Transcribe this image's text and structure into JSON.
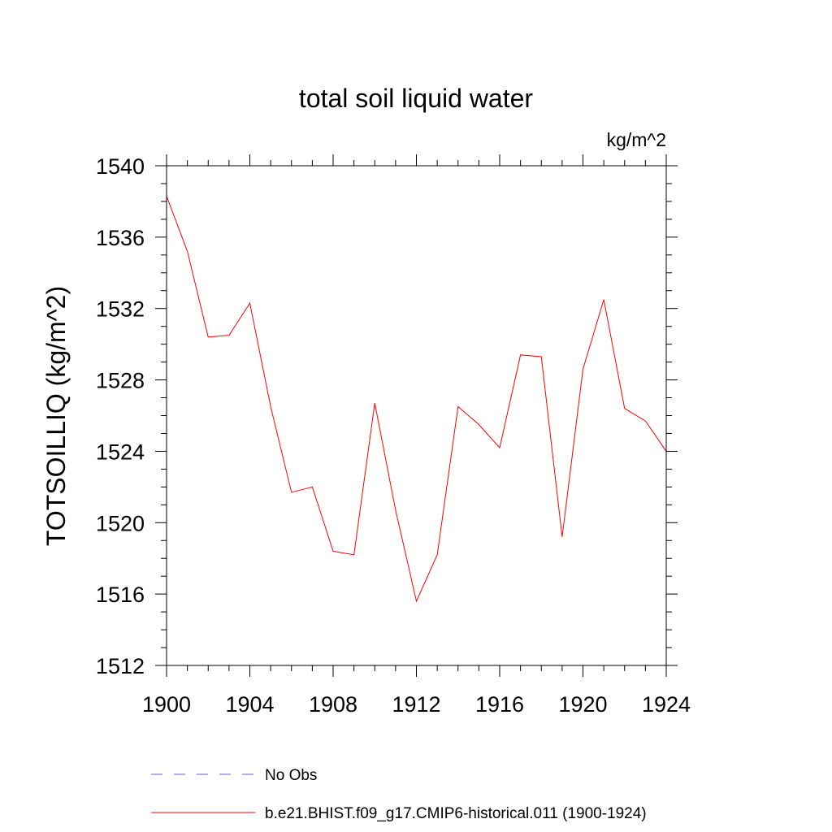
{
  "chart_data": {
    "type": "line",
    "title": "total soil liquid water",
    "units": "kg/m^2",
    "ylabel": "TOTSOILLIQ  (kg/m^2)",
    "xlabel": "",
    "xlim": [
      1900,
      1924
    ],
    "ylim": [
      1512,
      1540
    ],
    "x_ticks": [
      1900,
      1904,
      1908,
      1912,
      1916,
      1920,
      1924
    ],
    "y_ticks": [
      1512,
      1516,
      1520,
      1524,
      1528,
      1532,
      1536,
      1540
    ],
    "x_minor_step": 1,
    "y_minor_step": 1,
    "grid": false,
    "legend_position": "bottom",
    "colors": {
      "model": "#ff0000",
      "obs": "#6a5acd"
    },
    "series": [
      {
        "name": "b.e21.BHIST.f09_g17.CMIP6-historical.011 (1900-1924)",
        "style": "solid",
        "x": [
          1900,
          1901,
          1902,
          1903,
          1904,
          1905,
          1906,
          1907,
          1908,
          1909,
          1910,
          1911,
          1912,
          1913,
          1914,
          1915,
          1916,
          1917,
          1918,
          1919,
          1920,
          1921,
          1922,
          1923,
          1924
        ],
        "values": [
          1538.3,
          1535.2,
          1530.4,
          1530.5,
          1532.3,
          1526.5,
          1521.7,
          1522.0,
          1518.4,
          1518.2,
          1526.7,
          1520.7,
          1515.6,
          1518.2,
          1526.5,
          1525.5,
          1524.2,
          1529.4,
          1529.3,
          1519.2,
          1528.6,
          1532.5,
          1526.4,
          1525.7,
          1524.0
        ]
      }
    ],
    "legend": [
      {
        "label": "No Obs",
        "style": "dashed",
        "color": "#6a5acd"
      },
      {
        "label": "b.e21.BHIST.f09_g17.CMIP6-historical.011 (1900-1924)",
        "style": "solid",
        "color": "#ff0000"
      }
    ]
  }
}
